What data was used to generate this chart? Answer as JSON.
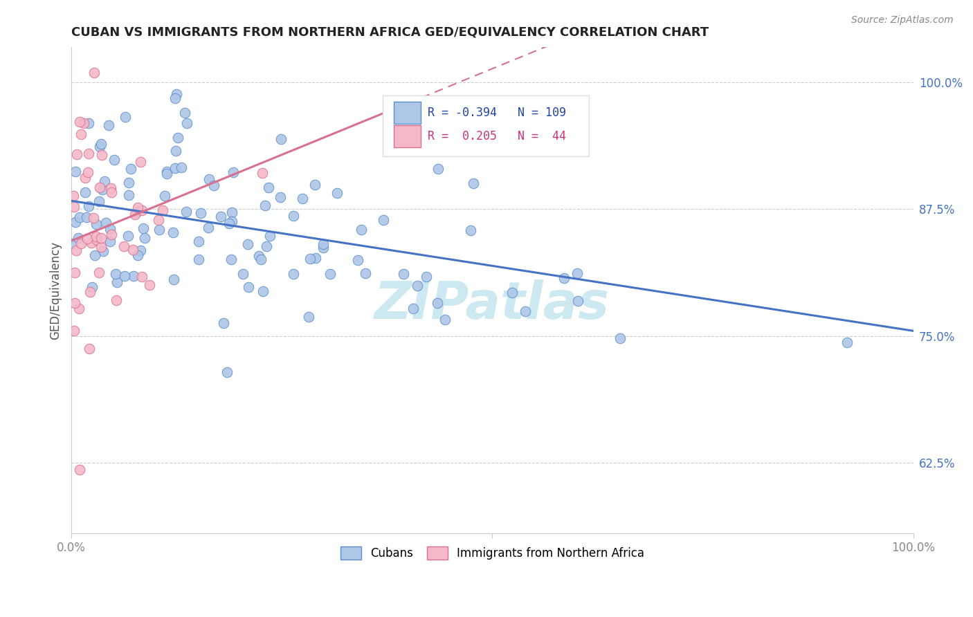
{
  "title": "CUBAN VS IMMIGRANTS FROM NORTHERN AFRICA GED/EQUIVALENCY CORRELATION CHART",
  "source": "Source: ZipAtlas.com",
  "ylabel": "GED/Equivalency",
  "ytick_labels": [
    "100.0%",
    "87.5%",
    "75.0%",
    "62.5%"
  ],
  "ytick_values": [
    1.0,
    0.875,
    0.75,
    0.625
  ],
  "legend_blue_label": "Cubans",
  "legend_pink_label": "Immigrants from Northern Africa",
  "blue_color": "#aec6e8",
  "blue_edge_color": "#5b8fc9",
  "blue_line_color": "#4472c4",
  "pink_color": "#f4b8c8",
  "pink_edge_color": "#d97090",
  "pink_line_color": "#d97090",
  "watermark_text": "ZIPatlas",
  "watermark_color": "#cce8f0",
  "blue_R": -0.394,
  "blue_N": 109,
  "pink_R": 0.205,
  "pink_N": 44,
  "text_blue_color": "#2244aa",
  "text_pink_color": "#cc3377",
  "text_label_color": "#555555",
  "title_color": "#222222",
  "source_color": "#888888",
  "ytick_color": "#4472c4",
  "xtick_color": "#888888",
  "grid_color": "#cccccc"
}
